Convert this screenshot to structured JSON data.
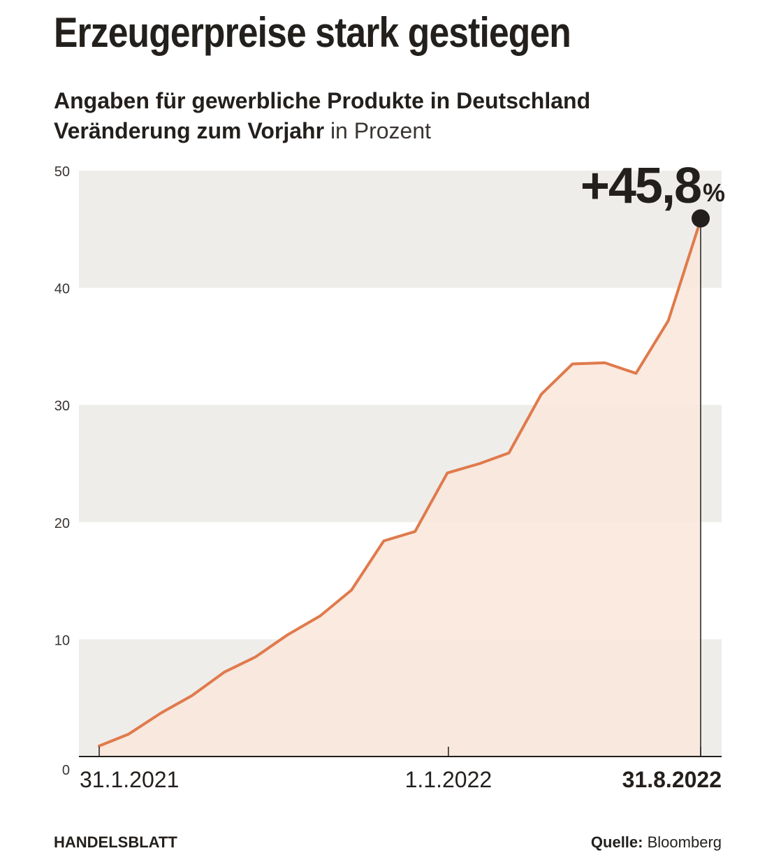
{
  "header": {
    "title": "Erzeugerpreise stark gestiegen",
    "subtitle": "Angaben für gewerbliche Produkte in Deutschland",
    "unit_bold": "Veränderung zum Vorjahr",
    "unit_light": "in Prozent"
  },
  "highlight": {
    "value_label": "+45,8",
    "percent_sign": "%"
  },
  "footer": {
    "brand": "HANDELSBLATT",
    "source_label": "Quelle:",
    "source_value": "Bloomberg"
  },
  "colors": {
    "line": "#e07a4c",
    "area": "#f9e6da",
    "band": "#eeedea",
    "text": "#231f1c"
  },
  "chart_data": {
    "type": "area",
    "title": "Erzeugerpreise stark gestiegen",
    "x": [
      "2021-01-31",
      "2021-02-28",
      "2021-03-31",
      "2021-04-30",
      "2021-05-31",
      "2021-06-30",
      "2021-07-31",
      "2021-08-31",
      "2021-09-30",
      "2021-10-31",
      "2021-11-30",
      "2021-12-31",
      "2022-01-31",
      "2022-02-28",
      "2022-03-31",
      "2022-04-30",
      "2022-05-31",
      "2022-06-30",
      "2022-07-31",
      "2022-08-31"
    ],
    "series": [
      {
        "values": [
          0.9,
          1.9,
          3.7,
          5.2,
          7.2,
          8.5,
          10.4,
          12.0,
          14.2,
          18.4,
          19.2,
          24.2,
          25.0,
          25.9,
          30.9,
          33.5,
          33.6,
          32.7,
          37.2,
          45.8
        ]
      }
    ],
    "ylim": [
      0,
      50
    ],
    "yticks": [
      0,
      10,
      20,
      30,
      40,
      50
    ],
    "xtick_labels": [
      {
        "x": "2021-01-31",
        "label": "31.1.2021"
      },
      {
        "x": "2022-01-01",
        "label": "1.1.2022"
      },
      {
        "x": "2022-08-31",
        "label": "31.8.2022"
      }
    ],
    "grid": "alternating horizontal bands",
    "highlight_point": {
      "x": "2022-08-31",
      "y": 45.8
    }
  }
}
